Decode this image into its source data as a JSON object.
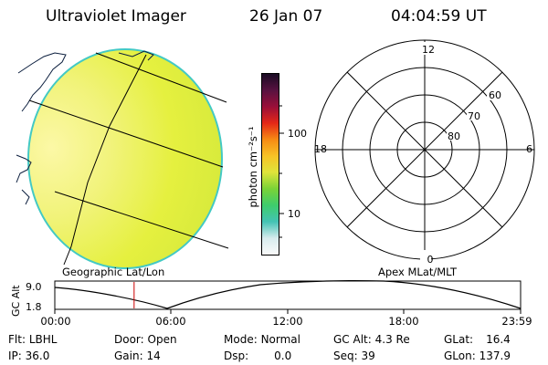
{
  "header": {
    "instrument": "Ultraviolet Imager",
    "date": "26 Jan 07",
    "time": "04:04:59 UT"
  },
  "colorbar": {
    "unit_label": "photon cm⁻²s⁻¹",
    "ticks": [
      {
        "label": "100",
        "value": 100
      },
      {
        "label": "10",
        "value": 10
      }
    ],
    "colors": [
      "#fafafa",
      "#d7ecee",
      "#43c3b4",
      "#3ecd6c",
      "#7ad337",
      "#dfe43b",
      "#f7c326",
      "#f68b14",
      "#e42817",
      "#9a0f39",
      "#581240",
      "#1a0b24"
    ]
  },
  "left_panel": {
    "caption": "Geographic Lat/Lon",
    "image_colors": {
      "disk_base": "#e5f03f",
      "disk_bright": "#fcf8a6",
      "rim": "#43c9c4"
    }
  },
  "right_panel": {
    "caption": "Apex MLat/MLT",
    "mlt_labels": {
      "top": "12",
      "bottom": "0",
      "left": "18",
      "right": "6"
    },
    "mlat_labels": [
      "60",
      "70",
      "80"
    ]
  },
  "altitude_plot": {
    "ylabel": "GC Alt",
    "y_ticks": [
      "9.0",
      "1.8"
    ],
    "x_ticks": [
      "00:00",
      "06:00",
      "12:00",
      "18:00",
      "23:59"
    ],
    "marker_time": "04:04:59",
    "marker_color": "#cc0000"
  },
  "info": {
    "filter": {
      "label": "Flt:",
      "value": "LBHL"
    },
    "ip": {
      "label": "IP:",
      "value": "36.0"
    },
    "door": {
      "label": "Door:",
      "value": "Open"
    },
    "gain": {
      "label": "Gain:",
      "value": "14"
    },
    "mode": {
      "label": "Mode:",
      "value": "Normal"
    },
    "dsp": {
      "label": "Dsp:",
      "value": "0.0"
    },
    "gc_alt": {
      "label": "GC Alt:",
      "value": "4.3 Re"
    },
    "seq": {
      "label": "Seq:",
      "value": "39"
    },
    "glat": {
      "label": "GLat:",
      "value": "16.4"
    },
    "glon": {
      "label": "GLon:",
      "value": "137.9"
    }
  }
}
